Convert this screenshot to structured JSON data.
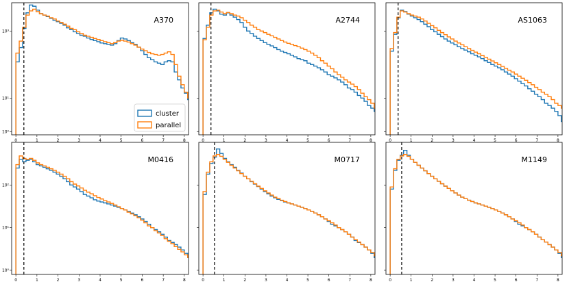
{
  "chart_data": [
    {
      "type": "histogram",
      "title": "A370",
      "yscale": "log",
      "xlim": [
        -0.2,
        8.2
      ],
      "ylim": [
        0.8,
        7000
      ],
      "xticks": [
        "0",
        "1",
        "2",
        "3",
        "4",
        "5",
        "6",
        "7",
        "8"
      ],
      "cut": 0.38,
      "legend": {
        "location": "lower-right",
        "entries": [
          "cluster",
          "parallel"
        ]
      },
      "series": [
        {
          "name": "cluster",
          "color": "#1f77b4",
          "x_start": 0.0,
          "bin_width": 0.16,
          "values": [
            120,
            320,
            1200,
            3500,
            6000,
            5500,
            4200,
            3300,
            3000,
            2700,
            2400,
            2100,
            1900,
            1700,
            1500,
            1250,
            1100,
            950,
            850,
            750,
            700,
            620,
            560,
            520,
            480,
            440,
            420,
            400,
            380,
            420,
            520,
            620,
            580,
            520,
            450,
            400,
            330,
            260,
            200,
            160,
            140,
            120,
            110,
            100,
            120,
            130,
            120,
            60,
            35,
            20,
            14,
            9,
            7,
            5
          ]
        },
        {
          "name": "parallel",
          "color": "#ff7f0e",
          "x_start": 0.0,
          "bin_width": 0.16,
          "values": [
            220,
            500,
            1300,
            3000,
            4000,
            4500,
            3800,
            3300,
            3000,
            2800,
            2500,
            2300,
            2000,
            1800,
            1600,
            1400,
            1200,
            1100,
            950,
            850,
            750,
            700,
            650,
            600,
            560,
            520,
            480,
            450,
            420,
            450,
            500,
            530,
            500,
            470,
            420,
            380,
            330,
            290,
            260,
            230,
            210,
            200,
            190,
            200,
            220,
            240,
            200,
            100,
            45,
            25,
            15,
            10,
            8,
            5
          ]
        }
      ]
    },
    {
      "type": "histogram",
      "title": "A2744",
      "yscale": "log",
      "xlim": [
        -0.2,
        8.2
      ],
      "ylim": [
        0.8,
        7000
      ],
      "xticks": [
        "0",
        "1",
        "2",
        "3",
        "4",
        "5",
        "6",
        "7",
        "8"
      ],
      "cut": 0.38,
      "series": [
        {
          "name": "cluster",
          "color": "#1f77b4",
          "x_start": 0.0,
          "bin_width": 0.16,
          "values": [
            600,
            1500,
            3500,
            4500,
            4000,
            3200,
            3000,
            3500,
            3000,
            2600,
            2200,
            1800,
            1300,
            1000,
            850,
            700,
            600,
            520,
            450,
            400,
            360,
            320,
            280,
            250,
            230,
            210,
            190,
            170,
            150,
            140,
            130,
            110,
            100,
            90,
            80,
            70,
            60,
            50,
            45,
            40,
            35,
            30,
            25,
            20,
            18,
            15,
            12,
            10,
            8,
            6,
            5,
            4,
            3,
            2
          ]
        },
        {
          "name": "parallel",
          "color": "#ff7f0e",
          "x_start": 0.0,
          "bin_width": 0.16,
          "values": [
            550,
            1300,
            3000,
            4000,
            4200,
            3700,
            3300,
            3600,
            3300,
            3000,
            2800,
            2500,
            2100,
            1800,
            1500,
            1300,
            1100,
            1000,
            900,
            800,
            720,
            650,
            580,
            520,
            470,
            430,
            400,
            370,
            340,
            310,
            280,
            250,
            220,
            190,
            160,
            130,
            110,
            90,
            75,
            60,
            50,
            42,
            35,
            30,
            26,
            22,
            18,
            14,
            11,
            9,
            7,
            5,
            4,
            3
          ]
        }
      ]
    },
    {
      "type": "histogram",
      "title": "AS1063",
      "yscale": "log",
      "xlim": [
        -0.2,
        8.2
      ],
      "ylim": [
        0.8,
        7000
      ],
      "xticks": [
        "0",
        "1",
        "2",
        "3",
        "4",
        "5",
        "6",
        "7",
        "8"
      ],
      "cut": 0.38,
      "series": [
        {
          "name": "cluster",
          "color": "#1f77b4",
          "x_start": 0.0,
          "bin_width": 0.16,
          "values": [
            250,
            800,
            2500,
            4200,
            3800,
            3200,
            2800,
            2500,
            2200,
            1900,
            1600,
            1350,
            1100,
            950,
            800,
            680,
            580,
            500,
            440,
            390,
            340,
            300,
            270,
            240,
            210,
            190,
            170,
            150,
            130,
            115,
            100,
            90,
            80,
            70,
            60,
            52,
            45,
            38,
            32,
            27,
            23,
            19,
            16,
            13,
            11,
            9,
            7,
            6,
            5,
            4,
            3,
            2,
            2,
            1.5
          ]
        },
        {
          "name": "parallel",
          "color": "#ff7f0e",
          "x_start": 0.0,
          "bin_width": 0.16,
          "values": [
            300,
            900,
            2600,
            4000,
            3700,
            3300,
            3000,
            2800,
            2600,
            2300,
            2000,
            1700,
            1450,
            1250,
            1050,
            900,
            780,
            670,
            580,
            500,
            440,
            390,
            340,
            300,
            265,
            235,
            210,
            185,
            165,
            145,
            128,
            113,
            100,
            88,
            77,
            68,
            60,
            52,
            45,
            39,
            34,
            29,
            25,
            21,
            18,
            15,
            13,
            11,
            9,
            7,
            6,
            5,
            4,
            3
          ]
        }
      ]
    },
    {
      "type": "histogram",
      "title": "M0416",
      "yscale": "log",
      "xlim": [
        -0.2,
        8.2
      ],
      "ylim": [
        0.8,
        1000
      ],
      "xticks": [
        "0",
        "1",
        "2",
        "3",
        "4",
        "5",
        "6",
        "7",
        "8"
      ],
      "cut": 0.38,
      "series": [
        {
          "name": "cluster",
          "color": "#1f77b4",
          "x_start": 0.0,
          "bin_width": 0.16,
          "values": [
            250,
            400,
            350,
            380,
            400,
            350,
            300,
            280,
            260,
            240,
            220,
            200,
            180,
            160,
            140,
            120,
            100,
            90,
            80,
            70,
            60,
            55,
            50,
            45,
            42,
            40,
            38,
            36,
            34,
            32,
            30,
            28,
            26,
            24,
            22,
            20,
            18,
            16,
            14,
            12,
            10,
            9,
            8,
            7,
            6,
            5,
            4.5,
            4,
            3.5,
            3,
            2.5,
            2,
            1.8,
            1.5
          ]
        },
        {
          "name": "parallel",
          "color": "#ff7f0e",
          "x_start": 0.0,
          "bin_width": 0.16,
          "values": [
            300,
            480,
            420,
            400,
            420,
            380,
            330,
            300,
            280,
            260,
            240,
            220,
            200,
            180,
            160,
            140,
            120,
            105,
            95,
            85,
            75,
            68,
            62,
            56,
            51,
            47,
            43,
            40,
            37,
            34,
            31,
            28,
            26,
            23,
            21,
            19,
            17,
            15,
            13,
            11,
            10,
            8.5,
            7.5,
            6.5,
            5.5,
            4.8,
            4.2,
            3.6,
            3.1,
            2.7,
            2.3,
            2,
            1.7,
            1.4
          ]
        }
      ]
    },
    {
      "type": "histogram",
      "title": "M0717",
      "yscale": "log",
      "xlim": [
        -0.2,
        8.2
      ],
      "ylim": [
        0.8,
        1000
      ],
      "xticks": [
        "0",
        "1",
        "2",
        "3",
        "4",
        "5",
        "6",
        "7",
        "8"
      ],
      "cut": 0.55,
      "series": [
        {
          "name": "cluster",
          "color": "#1f77b4",
          "x_start": 0.0,
          "bin_width": 0.16,
          "values": [
            60,
            180,
            320,
            450,
            700,
            550,
            420,
            350,
            300,
            260,
            220,
            190,
            160,
            140,
            120,
            105,
            92,
            80,
            70,
            62,
            55,
            50,
            46,
            43,
            40,
            38,
            36,
            34,
            32,
            30,
            28,
            26,
            24,
            22,
            20,
            18,
            16,
            14,
            12,
            11,
            10,
            9,
            8,
            7,
            6,
            5,
            4.5,
            4,
            3.5,
            3,
            2.5,
            2,
            1.7,
            1.4
          ]
        },
        {
          "name": "parallel",
          "color": "#ff7f0e",
          "x_start": 0.0,
          "bin_width": 0.16,
          "values": [
            70,
            200,
            350,
            480,
            520,
            470,
            400,
            340,
            290,
            250,
            215,
            185,
            160,
            140,
            122,
            107,
            94,
            83,
            73,
            65,
            58,
            52,
            48,
            44,
            41,
            38,
            36,
            34,
            32,
            30,
            28,
            26,
            24,
            22,
            20,
            18,
            16,
            14.5,
            13,
            11.5,
            10,
            9,
            8,
            7,
            6,
            5.2,
            4.6,
            4,
            3.5,
            3,
            2.6,
            2.2,
            1.9,
            1.5
          ]
        }
      ]
    },
    {
      "type": "histogram",
      "title": "M1149",
      "yscale": "log",
      "xlim": [
        -0.2,
        8.2
      ],
      "ylim": [
        0.8,
        1000
      ],
      "xticks": [
        "0",
        "1",
        "2",
        "3",
        "4",
        "5",
        "6",
        "7",
        "8"
      ],
      "cut": 0.55,
      "series": [
        {
          "name": "cluster",
          "color": "#1f77b4",
          "x_start": 0.0,
          "bin_width": 0.16,
          "values": [
            80,
            220,
            380,
            500,
            650,
            500,
            400,
            340,
            290,
            250,
            215,
            185,
            160,
            140,
            122,
            107,
            94,
            83,
            73,
            65,
            58,
            52,
            48,
            44,
            41,
            38,
            36,
            34,
            32,
            30,
            28,
            26,
            24,
            22,
            20,
            18,
            16,
            14,
            12,
            11,
            10,
            9,
            8,
            7,
            6,
            5.2,
            4.6,
            4,
            3.5,
            3,
            2.5,
            2,
            1.7,
            1.4
          ]
        },
        {
          "name": "parallel",
          "color": "#ff7f0e",
          "x_start": 0.0,
          "bin_width": 0.16,
          "values": [
            90,
            240,
            400,
            480,
            520,
            470,
            400,
            340,
            290,
            250,
            215,
            185,
            160,
            140,
            122,
            107,
            94,
            83,
            73,
            65,
            58,
            52,
            48,
            44,
            41,
            38,
            36,
            34,
            32,
            30,
            28,
            26,
            24,
            22,
            20,
            18,
            16,
            14.5,
            13,
            11.5,
            10,
            9,
            8,
            7,
            6,
            5.2,
            4.6,
            4,
            3.5,
            3,
            2.6,
            2.2,
            1.9,
            1.5
          ]
        }
      ]
    }
  ],
  "yticks_top": [
    "10³",
    "10¹",
    "10⁰"
  ],
  "yticks_bottom": [
    "10²",
    "10¹",
    "10⁰"
  ]
}
